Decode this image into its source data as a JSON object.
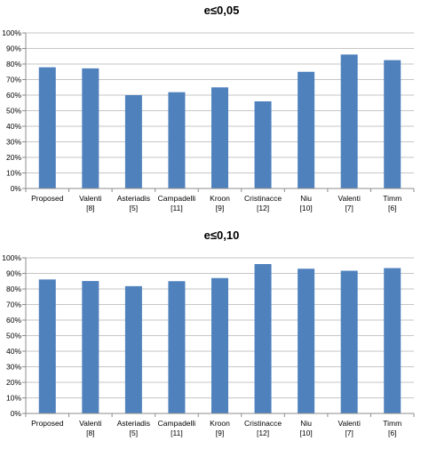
{
  "chart_data": [
    {
      "type": "bar",
      "title": "e≤0,05",
      "xlabel": "",
      "ylabel": "",
      "ylim": [
        0,
        100
      ],
      "yticks": [
        "0%",
        "10%",
        "20%",
        "30%",
        "40%",
        "50%",
        "60%",
        "70%",
        "80%",
        "90%",
        "100%"
      ],
      "categories": [
        [
          "Proposed"
        ],
        [
          "Valenti",
          "[8]"
        ],
        [
          "Asteriadis",
          "[5]"
        ],
        [
          "Campadelli",
          "[11]"
        ],
        [
          "Kroon",
          "[9]"
        ],
        [
          "Cristinacce",
          "[12]"
        ],
        [
          "Niu",
          "[10]"
        ],
        [
          "Valenti",
          "[7]"
        ],
        [
          "Timm",
          "[6]"
        ]
      ],
      "values": [
        77.9,
        77.2,
        60.0,
        61.9,
        65.0,
        56.0,
        75.0,
        86.1,
        82.5
      ],
      "bar_color": "#4f81bd",
      "grid": true
    },
    {
      "type": "bar",
      "title": "e≤0,10",
      "xlabel": "",
      "ylabel": "",
      "ylim": [
        0,
        100
      ],
      "yticks": [
        "0%",
        "10%",
        "20%",
        "30%",
        "40%",
        "50%",
        "60%",
        "70%",
        "80%",
        "90%",
        "100%"
      ],
      "categories": [
        [
          "Proposed"
        ],
        [
          "Valenti",
          "[8]"
        ],
        [
          "Asteriadis",
          "[5]"
        ],
        [
          "Campadelli",
          "[11]"
        ],
        [
          "Kroon",
          "[9]"
        ],
        [
          "Cristinacce",
          "[12]"
        ],
        [
          "Niu",
          "[10]"
        ],
        [
          "Valenti",
          "[7]"
        ],
        [
          "Timm",
          "[6]"
        ]
      ],
      "values": [
        86.1,
        85.1,
        81.8,
        85.0,
        87.0,
        96.0,
        93.0,
        91.7,
        93.4
      ],
      "bar_color": "#4f81bd",
      "grid": true
    }
  ]
}
